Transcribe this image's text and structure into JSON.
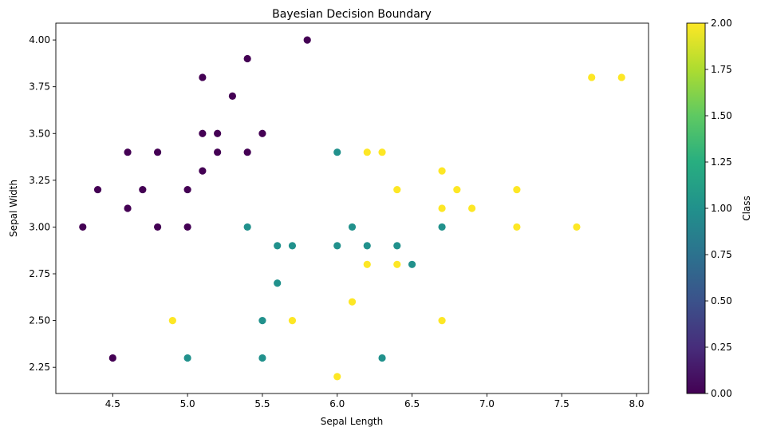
{
  "chart_data": {
    "type": "scatter",
    "title": "Bayesian Decision Boundary",
    "xlabel": "Sepal Length",
    "ylabel": "Sepal Width",
    "xlim": [
      4.12,
      8.08
    ],
    "ylim": [
      2.11,
      4.09
    ],
    "xticks": [
      4.5,
      5.0,
      5.5,
      6.0,
      6.5,
      7.0,
      7.5,
      8.0
    ],
    "xtick_labels": [
      "4.5",
      "5.0",
      "5.5",
      "6.0",
      "6.5",
      "7.0",
      "7.5",
      "8.0"
    ],
    "yticks": [
      2.25,
      2.5,
      2.75,
      3.0,
      3.25,
      3.5,
      3.75,
      4.0
    ],
    "ytick_labels": [
      "2.25",
      "2.50",
      "2.75",
      "3.00",
      "3.25",
      "3.50",
      "3.75",
      "4.00"
    ],
    "grid": false,
    "legend": "none",
    "colormap": "viridis",
    "colorbar": {
      "label": "Class",
      "range": [
        0.0,
        2.0
      ],
      "ticks": [
        0.0,
        0.25,
        0.5,
        0.75,
        1.0,
        1.25,
        1.5,
        1.75,
        2.0
      ],
      "tick_labels": [
        "0.00",
        "0.25",
        "0.50",
        "0.75",
        "1.00",
        "1.25",
        "1.50",
        "1.75",
        "2.00"
      ]
    },
    "class_colors": [
      "#440154",
      "#21918c",
      "#fde725"
    ],
    "points": [
      {
        "x": 5.8,
        "y": 4.0,
        "c": 0
      },
      {
        "x": 5.4,
        "y": 3.9,
        "c": 0
      },
      {
        "x": 5.1,
        "y": 3.8,
        "c": 0
      },
      {
        "x": 5.3,
        "y": 3.7,
        "c": 0
      },
      {
        "x": 5.1,
        "y": 3.5,
        "c": 0
      },
      {
        "x": 5.2,
        "y": 3.5,
        "c": 0
      },
      {
        "x": 5.5,
        "y": 3.5,
        "c": 0
      },
      {
        "x": 4.6,
        "y": 3.4,
        "c": 0
      },
      {
        "x": 4.8,
        "y": 3.4,
        "c": 0
      },
      {
        "x": 5.2,
        "y": 3.4,
        "c": 0
      },
      {
        "x": 5.4,
        "y": 3.4,
        "c": 0
      },
      {
        "x": 5.1,
        "y": 3.3,
        "c": 0
      },
      {
        "x": 4.4,
        "y": 3.2,
        "c": 0
      },
      {
        "x": 4.7,
        "y": 3.2,
        "c": 0
      },
      {
        "x": 5.0,
        "y": 3.2,
        "c": 0
      },
      {
        "x": 4.6,
        "y": 3.1,
        "c": 0
      },
      {
        "x": 4.3,
        "y": 3.0,
        "c": 0
      },
      {
        "x": 4.8,
        "y": 3.0,
        "c": 0
      },
      {
        "x": 5.0,
        "y": 3.0,
        "c": 0
      },
      {
        "x": 4.5,
        "y": 2.3,
        "c": 0
      },
      {
        "x": 6.0,
        "y": 3.4,
        "c": 1
      },
      {
        "x": 5.4,
        "y": 3.0,
        "c": 1
      },
      {
        "x": 6.1,
        "y": 3.0,
        "c": 1
      },
      {
        "x": 6.7,
        "y": 3.0,
        "c": 1
      },
      {
        "x": 5.6,
        "y": 2.9,
        "c": 1
      },
      {
        "x": 5.7,
        "y": 2.9,
        "c": 1
      },
      {
        "x": 6.0,
        "y": 2.9,
        "c": 1
      },
      {
        "x": 6.2,
        "y": 2.9,
        "c": 1
      },
      {
        "x": 6.4,
        "y": 2.9,
        "c": 1
      },
      {
        "x": 6.5,
        "y": 2.8,
        "c": 1
      },
      {
        "x": 5.6,
        "y": 2.7,
        "c": 1
      },
      {
        "x": 5.5,
        "y": 2.5,
        "c": 1
      },
      {
        "x": 5.0,
        "y": 2.3,
        "c": 1
      },
      {
        "x": 5.5,
        "y": 2.3,
        "c": 1
      },
      {
        "x": 6.3,
        "y": 2.3,
        "c": 1
      },
      {
        "x": 7.7,
        "y": 3.8,
        "c": 2
      },
      {
        "x": 7.9,
        "y": 3.8,
        "c": 2
      },
      {
        "x": 6.2,
        "y": 3.4,
        "c": 2
      },
      {
        "x": 6.3,
        "y": 3.4,
        "c": 2
      },
      {
        "x": 6.7,
        "y": 3.3,
        "c": 2
      },
      {
        "x": 6.4,
        "y": 3.2,
        "c": 2
      },
      {
        "x": 6.8,
        "y": 3.2,
        "c": 2
      },
      {
        "x": 7.2,
        "y": 3.2,
        "c": 2
      },
      {
        "x": 6.7,
        "y": 3.1,
        "c": 2
      },
      {
        "x": 6.9,
        "y": 3.1,
        "c": 2
      },
      {
        "x": 7.2,
        "y": 3.0,
        "c": 2
      },
      {
        "x": 7.6,
        "y": 3.0,
        "c": 2
      },
      {
        "x": 6.2,
        "y": 2.8,
        "c": 2
      },
      {
        "x": 6.4,
        "y": 2.8,
        "c": 2
      },
      {
        "x": 6.1,
        "y": 2.6,
        "c": 2
      },
      {
        "x": 4.9,
        "y": 2.5,
        "c": 2
      },
      {
        "x": 5.7,
        "y": 2.5,
        "c": 2
      },
      {
        "x": 6.7,
        "y": 2.5,
        "c": 2
      },
      {
        "x": 6.0,
        "y": 2.2,
        "c": 2
      }
    ]
  }
}
